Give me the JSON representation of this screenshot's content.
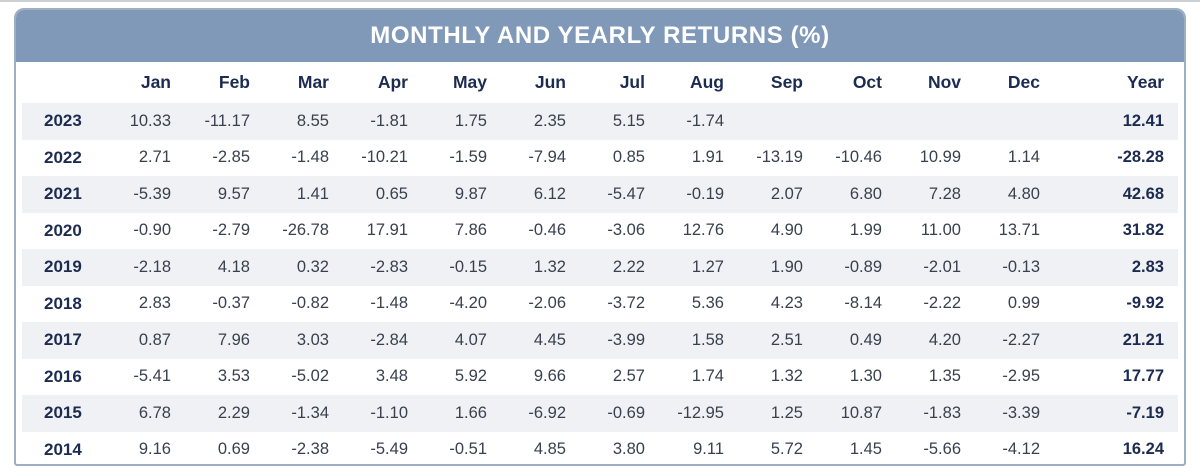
{
  "title": "MONTHLY AND YEARLY RETURNS (%)",
  "colors": {
    "title_bar_background": "#8099b8",
    "title_text": "#ffffff",
    "card_border": "#9fafc2",
    "stripe_row_background": "#f0f1f4",
    "header_and_year_text": "#1c2b50",
    "data_text": "#39404e"
  },
  "chart_data": {
    "type": "table",
    "title": "MONTHLY AND YEARLY RETURNS (%)",
    "columns": [
      "Jan",
      "Feb",
      "Mar",
      "Apr",
      "May",
      "Jun",
      "Jul",
      "Aug",
      "Sep",
      "Oct",
      "Nov",
      "Dec",
      "Year"
    ],
    "row_label_type": "year",
    "legend_position": "none",
    "rows": [
      {
        "year": "2023",
        "monthly": [
          10.33,
          -11.17,
          8.55,
          -1.81,
          1.75,
          2.35,
          5.15,
          -1.74,
          null,
          null,
          null,
          null
        ],
        "year_total": 12.41
      },
      {
        "year": "2022",
        "monthly": [
          2.71,
          -2.85,
          -1.48,
          -10.21,
          -1.59,
          -7.94,
          0.85,
          1.91,
          -13.19,
          -10.46,
          10.99,
          1.14
        ],
        "year_total": -28.28
      },
      {
        "year": "2021",
        "monthly": [
          -5.39,
          9.57,
          1.41,
          0.65,
          9.87,
          6.12,
          -5.47,
          -0.19,
          2.07,
          6.8,
          7.28,
          4.8
        ],
        "year_total": 42.68
      },
      {
        "year": "2020",
        "monthly": [
          -0.9,
          -2.79,
          -26.78,
          17.91,
          7.86,
          -0.46,
          -3.06,
          12.76,
          4.9,
          1.99,
          11.0,
          13.71
        ],
        "year_total": 31.82
      },
      {
        "year": "2019",
        "monthly": [
          -2.18,
          4.18,
          0.32,
          -2.83,
          -0.15,
          1.32,
          2.22,
          1.27,
          1.9,
          -0.89,
          -2.01,
          -0.13
        ],
        "year_total": 2.83
      },
      {
        "year": "2018",
        "monthly": [
          2.83,
          -0.37,
          -0.82,
          -1.48,
          -4.2,
          -2.06,
          -3.72,
          5.36,
          4.23,
          -8.14,
          -2.22,
          0.99
        ],
        "year_total": -9.92
      },
      {
        "year": "2017",
        "monthly": [
          0.87,
          7.96,
          3.03,
          -2.84,
          4.07,
          4.45,
          -3.99,
          1.58,
          2.51,
          0.49,
          4.2,
          -2.27
        ],
        "year_total": 21.21
      },
      {
        "year": "2016",
        "monthly": [
          -5.41,
          3.53,
          -5.02,
          3.48,
          5.92,
          9.66,
          2.57,
          1.74,
          1.32,
          1.3,
          1.35,
          -2.95
        ],
        "year_total": 17.77
      },
      {
        "year": "2015",
        "monthly": [
          6.78,
          2.29,
          -1.34,
          -1.1,
          1.66,
          -6.92,
          -0.69,
          -12.95,
          1.25,
          10.87,
          -1.83,
          -3.39
        ],
        "year_total": -7.19
      },
      {
        "year": "2014",
        "monthly": [
          9.16,
          0.69,
          -2.38,
          -5.49,
          -0.51,
          4.85,
          3.8,
          9.11,
          5.72,
          1.45,
          -5.66,
          -4.12
        ],
        "year_total": 16.24
      }
    ]
  }
}
